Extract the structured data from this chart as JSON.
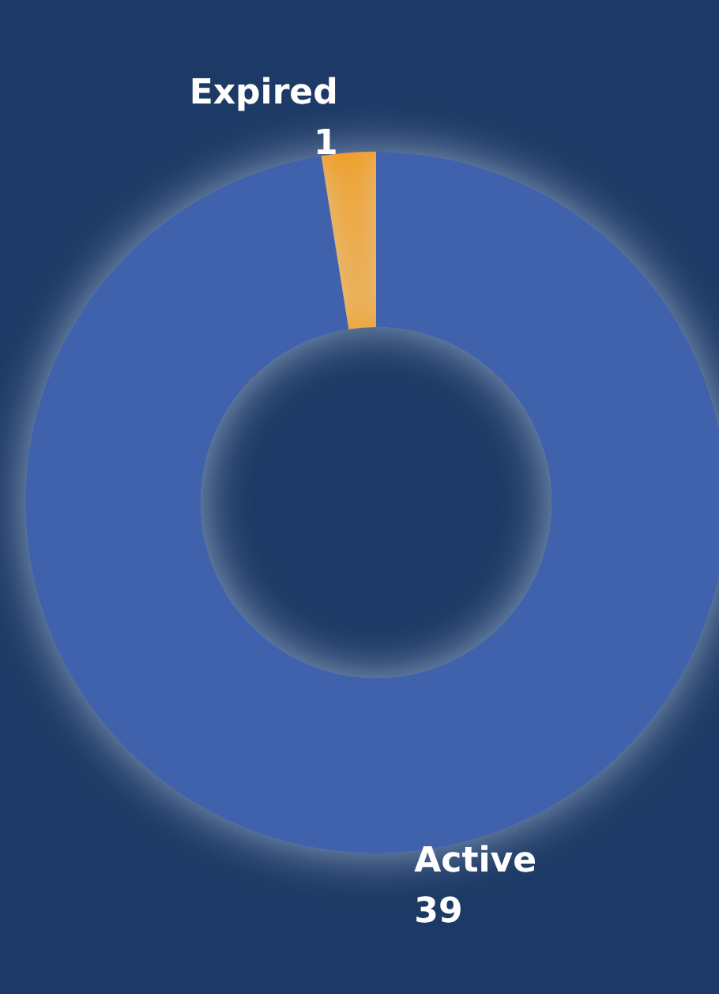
{
  "chart_data": {
    "type": "donut",
    "categories": [
      "Expired",
      "Active"
    ],
    "values": [
      1,
      39
    ],
    "colors": [
      "#f09a1e",
      "#3f62ad"
    ],
    "data_labels": true,
    "legend": false
  }
}
